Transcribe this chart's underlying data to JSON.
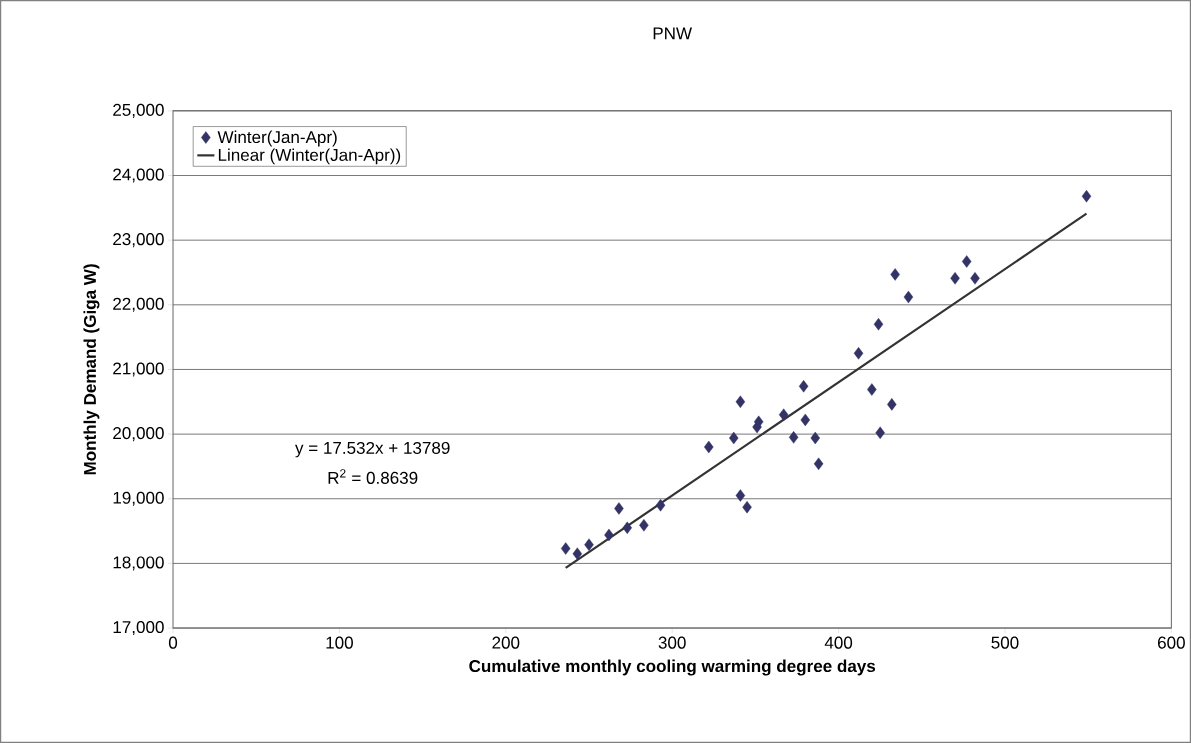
{
  "chart_data": {
    "type": "scatter",
    "title": "PNW",
    "xlabel": "Cumulative monthly cooling warming degree days",
    "ylabel": "Monthly Demand (Giga W)",
    "xlim": [
      0,
      600
    ],
    "xticks": [
      0,
      100,
      200,
      300,
      400,
      500,
      600
    ],
    "ylim": [
      17000,
      25000
    ],
    "yticks": [
      {
        "value": 17000,
        "label": "17,000"
      },
      {
        "value": 18000,
        "label": "18,000"
      },
      {
        "value": 19000,
        "label": "19,000"
      },
      {
        "value": 20000,
        "label": "20,000"
      },
      {
        "value": 21000,
        "label": "21,000"
      },
      {
        "value": 22000,
        "label": "22,000"
      },
      {
        "value": 23000,
        "label": "23,000"
      },
      {
        "value": 24000,
        "label": "24,000"
      },
      {
        "value": 25000,
        "label": "25,000"
      }
    ],
    "grid": "y",
    "legend": "top left",
    "annotations": [
      "y = 17.532x + 13789",
      "R$^{2}$ = 0.8639"
    ],
    "series": [
      {
        "name": "Winter(Jan-Apr)",
        "marker": "diamond",
        "color": "#333366",
        "x": [
          236,
          243,
          250,
          262,
          268,
          273,
          283,
          293,
          322,
          337,
          341,
          341,
          345,
          351,
          352,
          367,
          373,
          379,
          380,
          386,
          388,
          412,
          420,
          424,
          425,
          432,
          434,
          442,
          470,
          477,
          482,
          549
        ],
        "values": [
          18230,
          18150,
          18290,
          18440,
          18850,
          18550,
          18590,
          18900,
          19800,
          19940,
          20500,
          19050,
          18870,
          20110,
          20190,
          20300,
          19950,
          20740,
          20220,
          19940,
          19540,
          21250,
          20690,
          21700,
          20020,
          20460,
          22470,
          22120,
          22410,
          22670,
          22410,
          23680
        ]
      },
      {
        "name": "Linear (Winter(Jan-Apr))",
        "type": "line",
        "marker": "none",
        "color": "#333333",
        "x": [
          236,
          549
        ],
        "values": [
          17930,
          23410
        ]
      }
    ]
  }
}
